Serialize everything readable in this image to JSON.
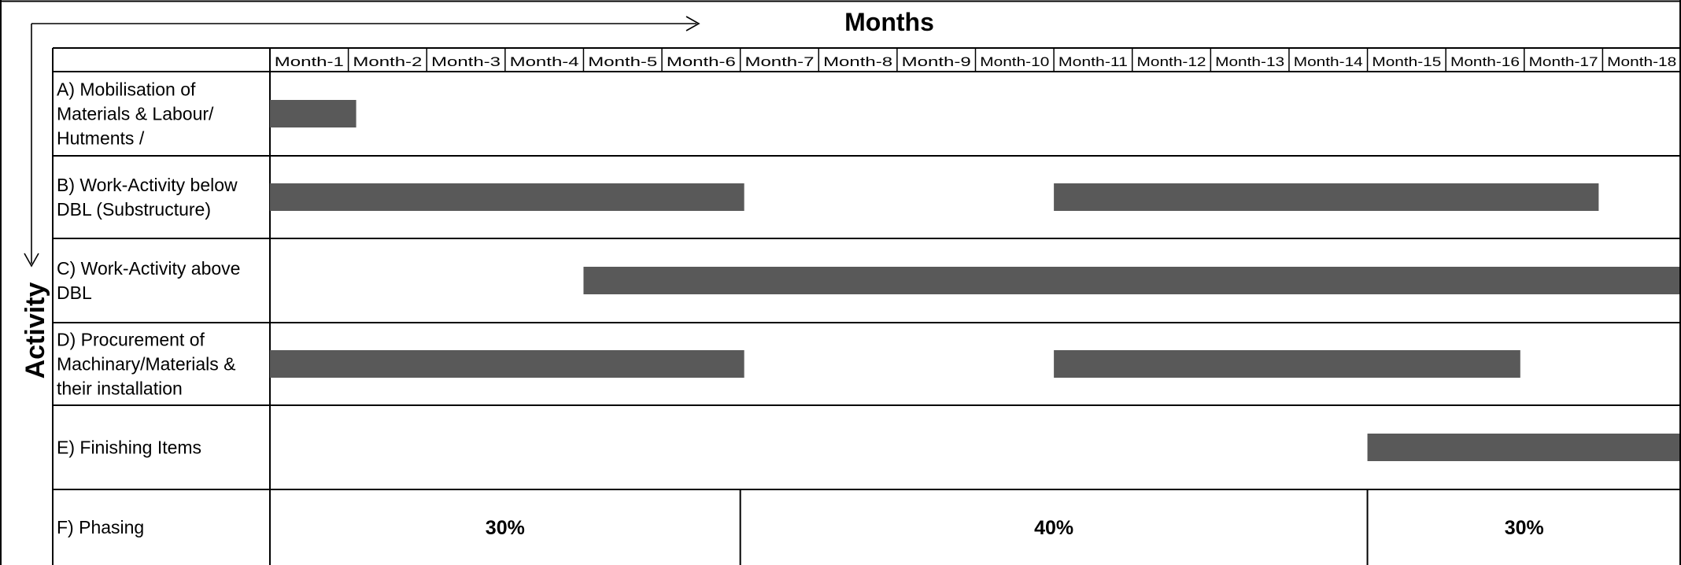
{
  "chart_data": {
    "type": "gantt",
    "title": "Months",
    "ylabel": "Activity",
    "months": [
      "Month-1",
      "Month-2",
      "Month-3",
      "Month-4",
      "Month-5",
      "Month-6",
      "Month-7",
      "Month-8",
      "Month-9",
      "Month-10",
      "Month-11",
      "Month-12",
      "Month-13",
      "Month-14",
      "Month-15",
      "Month-16",
      "Month-17",
      "Month-18"
    ],
    "activities": [
      {
        "label_lines": [
          "A)    Mobilisation of",
          "Materials & Labour/",
          "Hutments /"
        ],
        "bars": [
          {
            "start": 0,
            "end": 1.1
          }
        ]
      },
      {
        "label_lines": [
          "B)   Work-Activity below",
          "DBL (Substructure)"
        ],
        "bars": [
          {
            "start": 0,
            "end": 6.05
          },
          {
            "start": 10,
            "end": 16.95
          }
        ]
      },
      {
        "label_lines": [
          "C)  Work-Activity above",
          "DBL"
        ],
        "bars": [
          {
            "start": 4,
            "end": 18
          }
        ]
      },
      {
        "label_lines": [
          "D)  Procurement of",
          "Machinary/Materials  &",
          "their installation"
        ],
        "bars": [
          {
            "start": 0,
            "end": 6.05
          },
          {
            "start": 10,
            "end": 15.95
          }
        ]
      },
      {
        "label_lines": [
          "E) Finishing Items"
        ],
        "bars": [
          {
            "start": 14,
            "end": 18
          }
        ]
      }
    ],
    "phasing": {
      "label": "F)  Phasing",
      "segments": [
        {
          "start": 0,
          "end": 6,
          "value": "30%"
        },
        {
          "start": 6,
          "end": 14,
          "value": "40%"
        },
        {
          "start": 14,
          "end": 18,
          "value": "30%"
        }
      ]
    },
    "colors": {
      "bar": "#595959",
      "grid": "#000000",
      "background": "#ffffff"
    },
    "grid": true
  }
}
